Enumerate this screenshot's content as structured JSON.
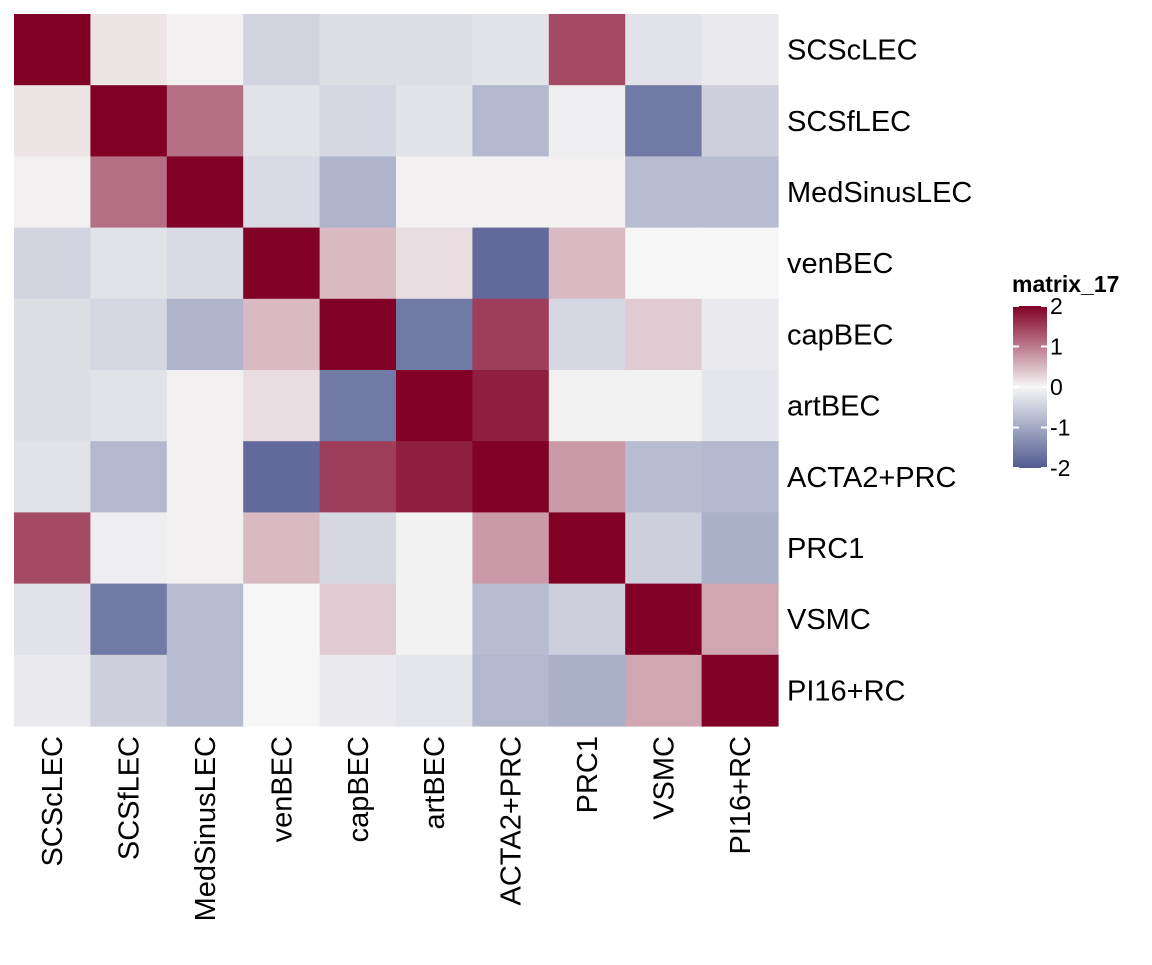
{
  "chart_data": {
    "type": "heatmap",
    "title": "",
    "xlabel": "",
    "ylabel": "",
    "rows": [
      "SCScLEC",
      "SCSfLEC",
      "MedSinusLEC",
      "venBEC",
      "capBEC",
      "artBEC",
      "ACTA2+PRC",
      "PRC1",
      "VSMC",
      "PI16+RC"
    ],
    "columns": [
      "SCScLEC",
      "SCSfLEC",
      "MedSinusLEC",
      "venBEC",
      "capBEC",
      "artBEC",
      "ACTA2+PRC",
      "PRC1",
      "VSMC",
      "PI16+RC"
    ],
    "values": [
      [
        2.0,
        0.15,
        0.05,
        -0.45,
        -0.3,
        -0.3,
        -0.25,
        1.4,
        -0.25,
        -0.15
      ],
      [
        0.15,
        2.0,
        1.1,
        -0.25,
        -0.4,
        -0.25,
        -0.8,
        -0.1,
        -1.6,
        -0.5
      ],
      [
        0.05,
        1.1,
        2.0,
        -0.35,
        -0.85,
        0.05,
        0.05,
        0.05,
        -0.75,
        -0.75
      ],
      [
        -0.45,
        -0.25,
        -0.35,
        2.0,
        0.5,
        0.2,
        -1.8,
        0.5,
        0.0,
        0.0
      ],
      [
        -0.3,
        -0.4,
        -0.85,
        0.5,
        2.0,
        -1.6,
        1.5,
        -0.4,
        0.35,
        -0.15
      ],
      [
        -0.3,
        -0.25,
        0.05,
        0.2,
        -1.6,
        2.0,
        1.75,
        -0.05,
        -0.05,
        -0.2
      ],
      [
        -0.25,
        -0.8,
        0.05,
        -1.8,
        1.5,
        1.75,
        2.0,
        0.75,
        -0.75,
        -0.8
      ],
      [
        1.4,
        -0.1,
        0.05,
        0.5,
        -0.4,
        -0.05,
        0.75,
        2.0,
        -0.5,
        -0.9
      ],
      [
        -0.25,
        -1.6,
        -0.75,
        0.0,
        0.35,
        -0.05,
        -0.75,
        -0.5,
        2.0,
        0.65
      ],
      [
        -0.15,
        -0.5,
        -0.75,
        0.0,
        -0.15,
        -0.2,
        -0.8,
        -0.9,
        0.65,
        2.0
      ]
    ],
    "color_scale": {
      "min": -2,
      "mid": 0,
      "max": 2,
      "low_color": "#505a91",
      "mid_color": "#f6f6f6",
      "high_color": "#800026"
    },
    "legend": {
      "title": "matrix_17",
      "ticks": [
        2,
        1,
        0,
        -1,
        -2
      ],
      "tick_labels": [
        "2",
        "1",
        "0",
        "-1",
        "-2"
      ],
      "position": "right"
    },
    "grid": false
  }
}
